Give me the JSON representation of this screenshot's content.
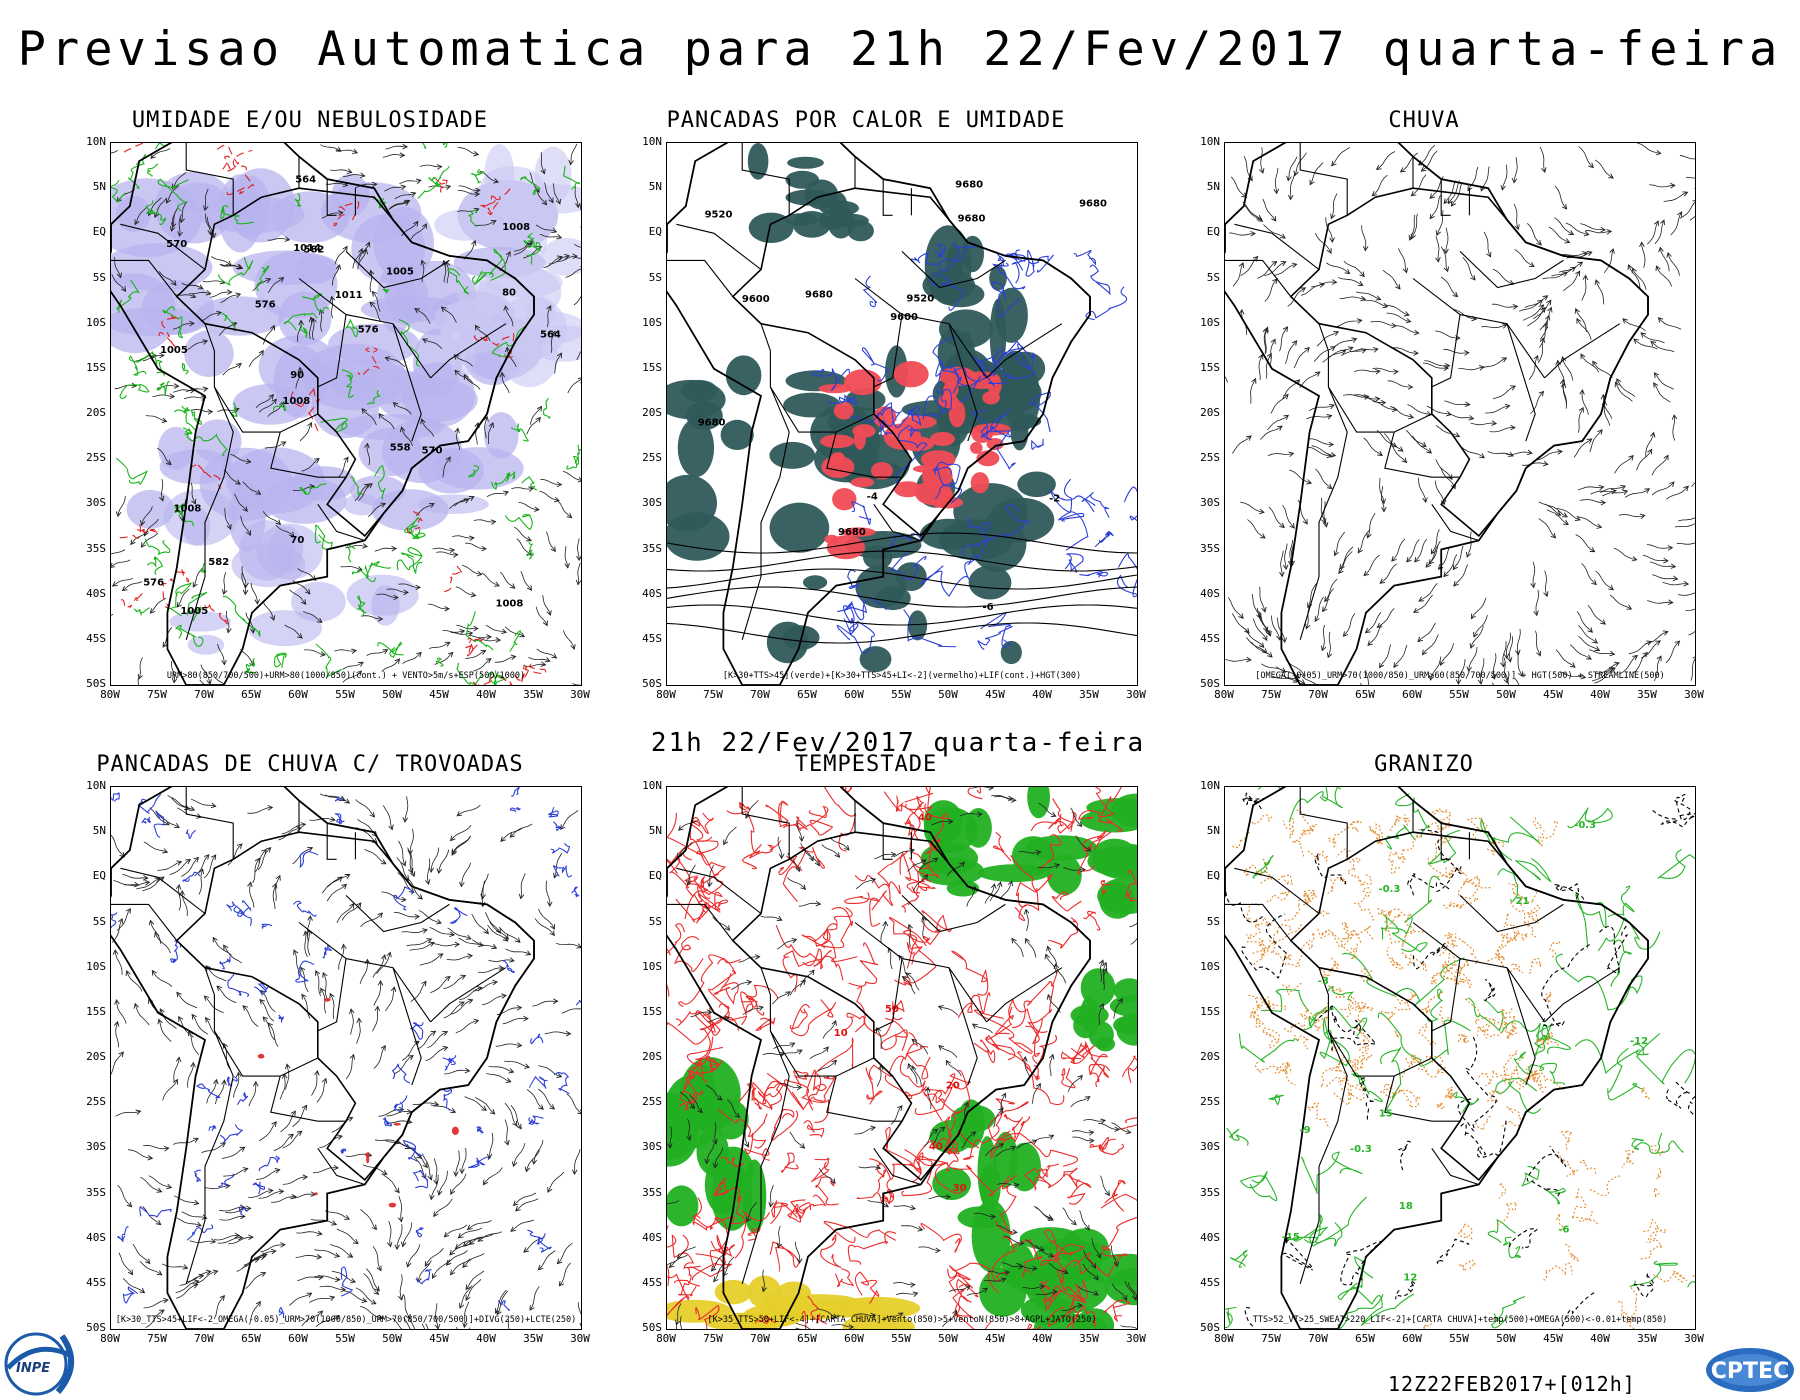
{
  "header": {
    "title": "Previsao Automatica  para 21h 22/Fev/2017 quarta-feira",
    "middle_caption": "21h 22/Fev/2017 quarta-feira"
  },
  "axes": {
    "lat_labels": [
      "10N",
      "5N",
      "EQ",
      "5S",
      "10S",
      "15S",
      "20S",
      "25S",
      "30S",
      "35S",
      "40S",
      "45S",
      "50S"
    ],
    "lon_labels": [
      "80W",
      "75W",
      "70W",
      "65W",
      "60W",
      "55W",
      "50W",
      "45W",
      "40W",
      "35W",
      "30W"
    ]
  },
  "panels": [
    {
      "title": "UMIDADE E/OU NEBULOSIDADE",
      "legend": "URM>80(850/700/500)+URM>80(1000/850)(cont.) + VENTO>5m/s+ESP(500/1000)",
      "labels": [
        "1008",
        "1005",
        "1008",
        "1008",
        "1005",
        "1005",
        "1014",
        "1011",
        "1008",
        "576",
        "576",
        "582",
        "582",
        "576",
        "570",
        "570",
        "564",
        "564",
        "558",
        "80",
        "90",
        "70"
      ]
    },
    {
      "title": "PANCADAS POR CALOR E UMIDADE",
      "legend": "[K>30+TTS>45](verde)+[K>30+TTS>45+LI<-2](vermelho)+LIF(cont.)+HGT(300)",
      "labels": [
        "9680",
        "9680",
        "9680",
        "9680",
        "9680",
        "9680",
        "9600",
        "9600",
        "9520",
        "9520",
        "-2",
        "-4",
        "-6"
      ]
    },
    {
      "title": "CHUVA",
      "legend": "[OMEGA(-0.05)_URM>70(1000/850)_URM>60(850/700/500)] + HGT(500) + STREAMLINE(500)",
      "labels": []
    },
    {
      "title": "PANCADAS DE CHUVA C/ TROVOADAS",
      "legend": "[K>30_TTS>45+LIF<-2_OMEGA(-0.05)_URM>70(1000/850)_URM>70(850/700/500)]+DIVG(250)+LCTE(250)",
      "labels": []
    },
    {
      "title": "TEMPESTADE",
      "legend": "[K>35_TTS>50+LIF<-4]+[CARTA CHUVA]+Vento(850)>5+VentoN(850)>8+AGPL+JATO(250)",
      "labels": [
        "40",
        "50",
        "30",
        "40",
        "10",
        "20"
      ]
    },
    {
      "title": "GRANIZO",
      "legend": "TTS>52_VT>25_SWEAT>220_LIF<-2]+[CARTA CHUVA]+temp(500)+OMEGA(500)<-0.01+temp(850)",
      "labels": [
        "-0.3",
        "-0.3",
        "-0.3",
        "-6",
        "-3",
        "-9",
        "-12",
        "-15",
        "18",
        "21",
        "15",
        "12"
      ]
    }
  ],
  "footer": {
    "run_code": "12Z22FEB2017+[012h]",
    "logo_left": "INPE",
    "logo_right": "CPTEC"
  }
}
